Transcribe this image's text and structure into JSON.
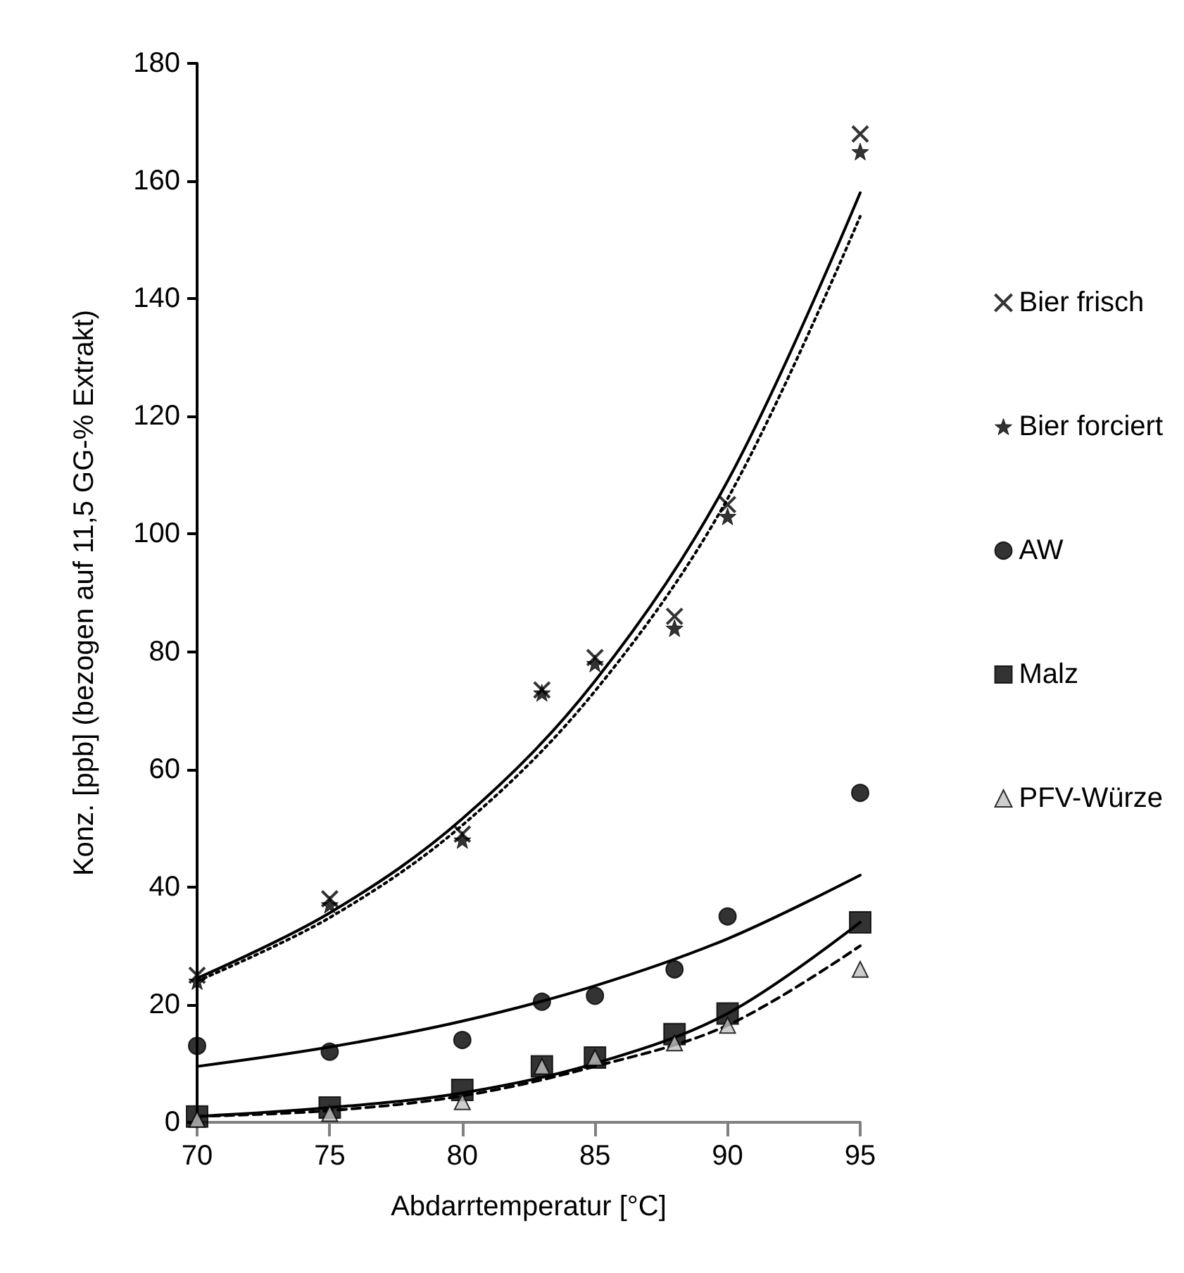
{
  "chart_data": {
    "type": "scatter",
    "xlabel": "Abdarrtemperatur [°C]",
    "ylabel": "Konz. [ppb] (bezogen auf 11,5 GG-% Extrakt)",
    "x": [
      70,
      75,
      80,
      83,
      85,
      88,
      90,
      95
    ],
    "xlim": [
      70,
      95
    ],
    "xticks": [
      70,
      75,
      80,
      85,
      90,
      95
    ],
    "ylim": [
      0,
      180
    ],
    "yticks": [
      0,
      20,
      40,
      60,
      80,
      100,
      120,
      140,
      160,
      180
    ],
    "grid": false,
    "legend": "right",
    "series": [
      {
        "name": "Bier frisch",
        "color": "#000000",
        "marker": "cross",
        "values": [
          25,
          38,
          49,
          73.5,
          79,
          86,
          105,
          168
        ]
      },
      {
        "name": "Bier forciert",
        "color": "#000000",
        "marker": "star",
        "values": [
          24,
          37,
          48,
          73,
          78,
          84,
          103,
          165
        ]
      },
      {
        "name": "AW",
        "color": "#000000",
        "marker": "circle",
        "values": [
          13,
          12,
          14,
          20.5,
          21.5,
          26,
          35,
          56
        ]
      },
      {
        "name": "Malz",
        "color": "#000000",
        "marker": "square",
        "values": [
          1,
          2.5,
          5.5,
          9.5,
          11,
          15,
          18.5,
          34
        ]
      },
      {
        "name": "PFV-Würze",
        "color": "#c0c0c0",
        "marker": "triangle",
        "values": [
          0.5,
          1.5,
          3.5,
          9.5,
          11,
          13.5,
          16.5,
          26
        ]
      },
      {
        "type": "line",
        "color": "#000000",
        "line_style": "solid",
        "x": [
          70,
          75,
          80,
          85,
          90,
          95
        ],
        "values": [
          24.5,
          35.6,
          51.6,
          75,
          109,
          158
        ]
      },
      {
        "type": "line",
        "color": "#000000",
        "line_style": "dotted",
        "x": [
          70,
          75,
          80,
          85,
          90,
          95
        ],
        "values": [
          24,
          34.8,
          50.5,
          73.3,
          106,
          154
        ]
      },
      {
        "type": "line",
        "color": "#000000",
        "line_style": "solid",
        "x": [
          70,
          75,
          80,
          85,
          90,
          95
        ],
        "values": [
          9.5,
          12.8,
          17.2,
          23.2,
          31.2,
          42
        ]
      },
      {
        "type": "line",
        "color": "#000000",
        "line_style": "solid",
        "x": [
          70,
          75,
          80,
          85,
          90,
          95
        ],
        "values": [
          1,
          2.5,
          5,
          10,
          18.5,
          34
        ]
      },
      {
        "type": "line",
        "color": "#000000",
        "line_style": "dashed",
        "x": [
          70,
          75,
          80,
          85,
          90,
          95
        ],
        "values": [
          1,
          2,
          4.5,
          9.5,
          16.5,
          30
        ]
      }
    ]
  }
}
